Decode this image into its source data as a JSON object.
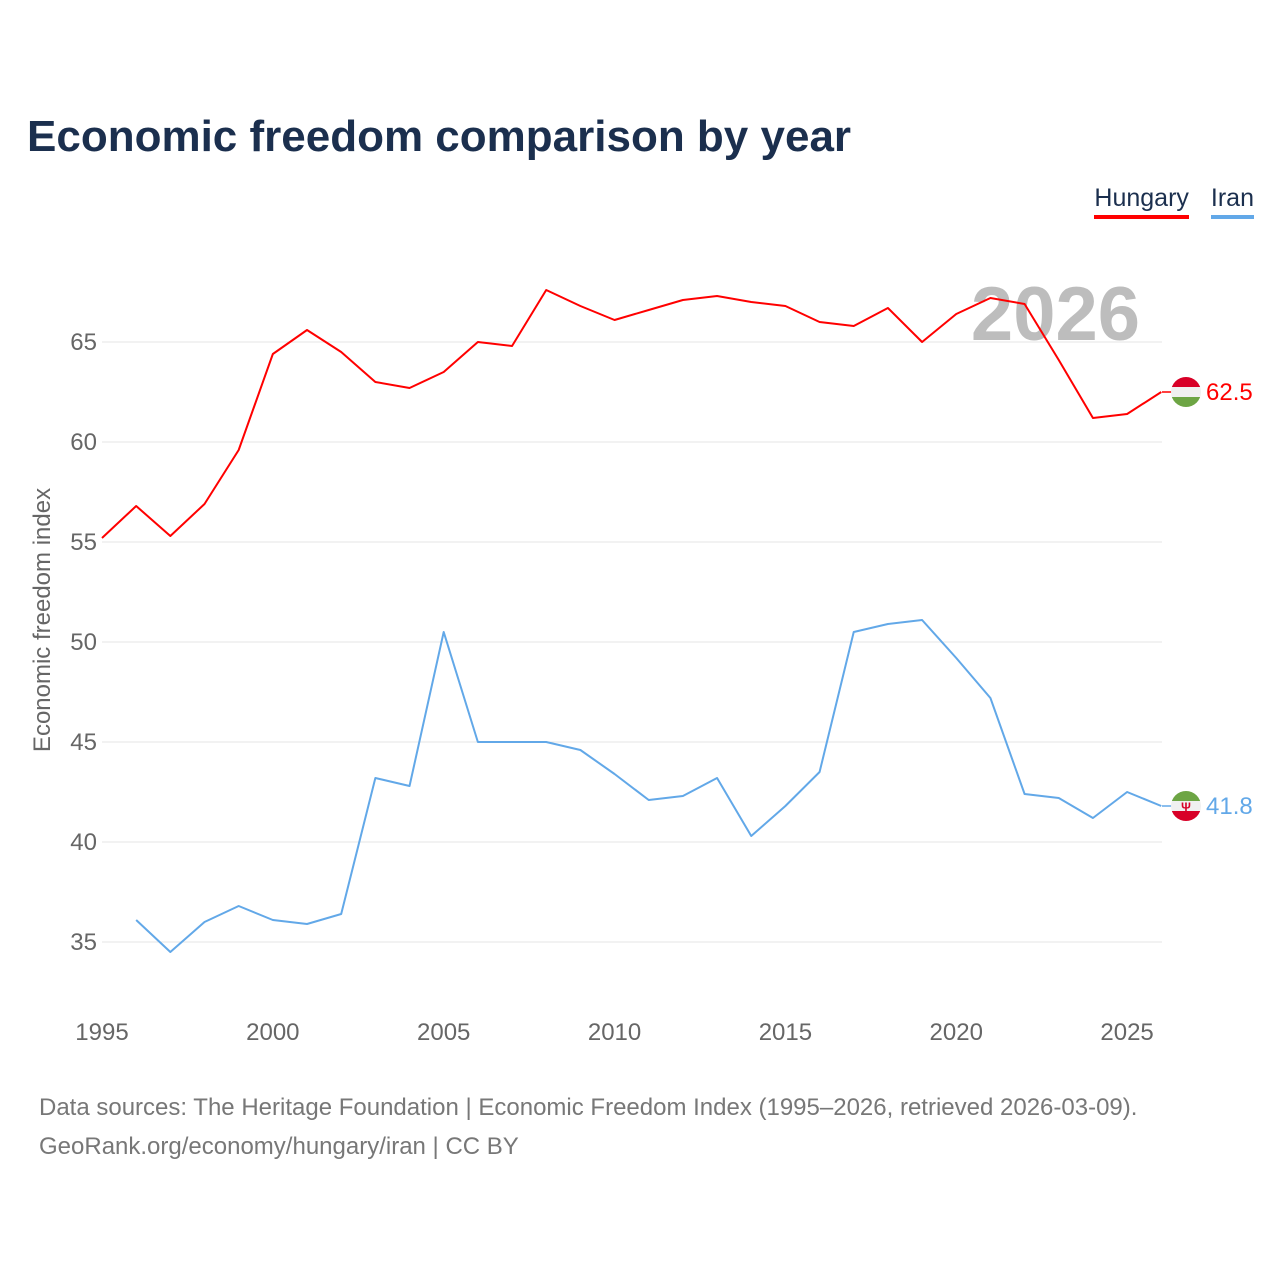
{
  "title": "Economic freedom comparison by year",
  "footer": {
    "line1": "Data sources: The Heritage Foundation | Economic Freedom Index (1995–2026, retrieved 2026-03-09).",
    "line2": "GeoRank.org/economy/hungary/iran | CC BY"
  },
  "chart_data": {
    "type": "line",
    "title": "Economic freedom comparison by year",
    "xlabel": "",
    "ylabel": "Economic freedom index",
    "xlim": [
      1995,
      2026
    ],
    "ylim": [
      32,
      69
    ],
    "xticks": [
      1995,
      2000,
      2005,
      2010,
      2015,
      2020,
      2025
    ],
    "yticks": [
      35,
      40,
      45,
      50,
      55,
      60,
      65
    ],
    "grid": true,
    "legend": "top-right",
    "year_watermark": "2026",
    "series": [
      {
        "name": "Hungary",
        "color": "#ff0000",
        "flag": "hungary-flag",
        "end_label": "62.5",
        "x": [
          1995,
          1996,
          1997,
          1998,
          1999,
          2000,
          2001,
          2002,
          2003,
          2004,
          2005,
          2006,
          2007,
          2008,
          2009,
          2010,
          2011,
          2012,
          2013,
          2014,
          2015,
          2016,
          2017,
          2018,
          2019,
          2020,
          2021,
          2022,
          2023,
          2024,
          2025,
          2026
        ],
        "y": [
          55.2,
          56.8,
          55.3,
          56.9,
          59.6,
          64.4,
          65.6,
          64.5,
          63.0,
          62.7,
          63.5,
          65.0,
          64.8,
          67.6,
          66.8,
          66.1,
          66.6,
          67.1,
          67.3,
          67.0,
          66.8,
          66.0,
          65.8,
          66.7,
          65.0,
          66.4,
          67.2,
          66.9,
          64.1,
          61.2,
          61.4,
          62.5
        ]
      },
      {
        "name": "Iran",
        "color": "#62a8e8",
        "flag": "iran-flag",
        "end_label": "41.8",
        "x": [
          1996,
          1997,
          1998,
          1999,
          2000,
          2001,
          2002,
          2003,
          2004,
          2005,
          2006,
          2007,
          2008,
          2009,
          2010,
          2011,
          2012,
          2013,
          2014,
          2015,
          2016,
          2017,
          2018,
          2019,
          2020,
          2021,
          2022,
          2023,
          2024,
          2025,
          2026
        ],
        "y": [
          36.1,
          34.5,
          36.0,
          36.8,
          36.1,
          35.9,
          36.4,
          43.2,
          42.8,
          50.5,
          45.0,
          45.0,
          45.0,
          44.6,
          43.4,
          42.1,
          42.3,
          43.2,
          40.3,
          41.8,
          43.5,
          50.5,
          50.9,
          51.1,
          49.2,
          47.2,
          42.4,
          42.2,
          41.2,
          42.5,
          41.8
        ]
      }
    ]
  }
}
